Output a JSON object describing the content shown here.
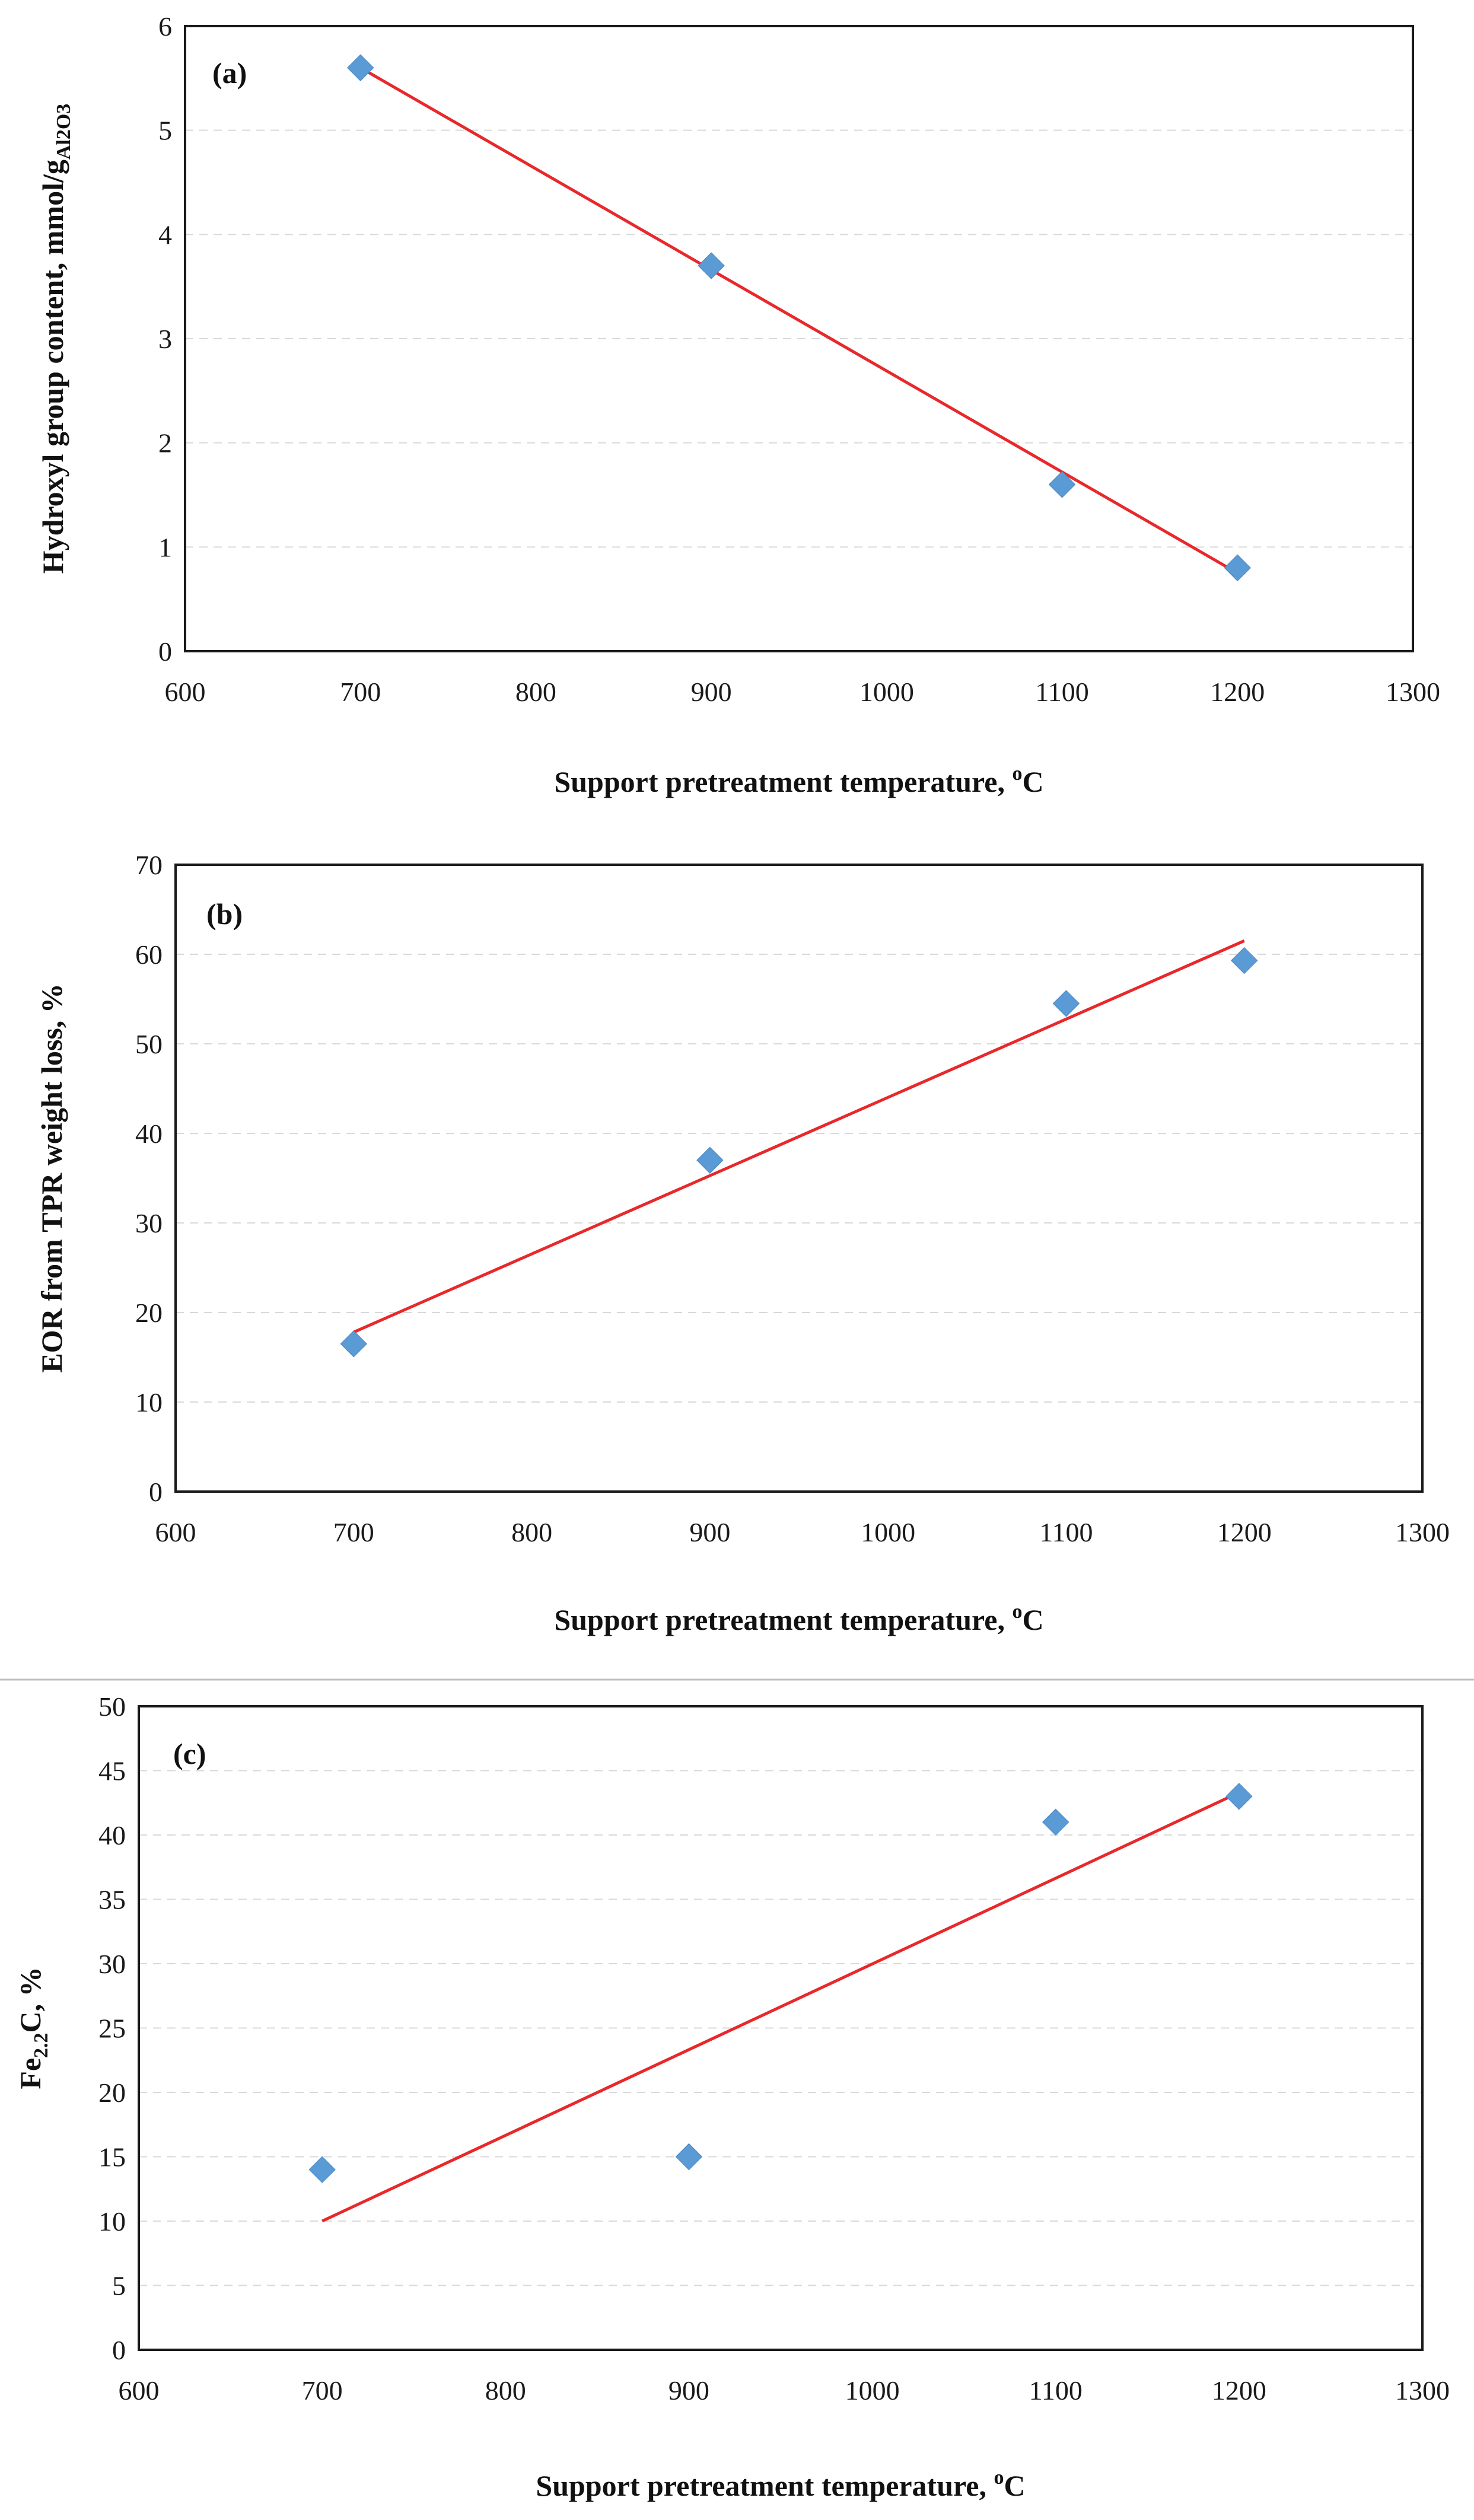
{
  "chart_data": [
    {
      "type": "scatter",
      "panel_label": "(a)",
      "x": [
        700,
        900,
        1100,
        1200
      ],
      "y": [
        5.6,
        3.7,
        1.6,
        0.8
      ],
      "trendline": {
        "x": [
          700,
          1200
        ],
        "y": [
          5.6,
          0.75
        ]
      },
      "xlim": [
        600,
        1300
      ],
      "ylim": [
        0,
        6
      ],
      "xticks": [
        "600",
        "700",
        "800",
        "900",
        "1000",
        "1100",
        "1200",
        "1300"
      ],
      "yticks": [
        "0",
        "1",
        "2",
        "3",
        "4",
        "5",
        "6"
      ],
      "xlabel": "Support pretreatment temperature, ",
      "xlabel_sup": "o",
      "xlabel_unit": "C",
      "ylabel": "Hydroxyl group content, mmol/g",
      "ylabel_sub": "Al2O3",
      "ylabel_tail": "",
      "marker_color": "#5b9bd5",
      "line_color": "#e8282b",
      "grid": true
    },
    {
      "type": "scatter",
      "panel_label": "(b)",
      "x": [
        700,
        900,
        1100,
        1200
      ],
      "y": [
        16.5,
        37,
        54.5,
        59.3
      ],
      "trendline": {
        "x": [
          700,
          1200
        ],
        "y": [
          17.8,
          61.5
        ]
      },
      "xlim": [
        600,
        1300
      ],
      "ylim": [
        0,
        70
      ],
      "xticks": [
        "600",
        "700",
        "800",
        "900",
        "1000",
        "1100",
        "1200",
        "1300"
      ],
      "yticks": [
        "0",
        "10",
        "20",
        "30",
        "40",
        "50",
        "60",
        "70"
      ],
      "xlabel": "Support pretreatment temperature, ",
      "xlabel_sup": "o",
      "xlabel_unit": "C",
      "ylabel": "EOR from TPR weight loss, %",
      "ylabel_sub": "",
      "ylabel_tail": "",
      "marker_color": "#5b9bd5",
      "line_color": "#e8282b",
      "grid": true
    },
    {
      "type": "scatter",
      "panel_label": "(c)",
      "x": [
        700,
        900,
        1100,
        1200
      ],
      "y": [
        14,
        15,
        41,
        43
      ],
      "trendline": {
        "x": [
          700,
          1200
        ],
        "y": [
          10,
          43.3
        ]
      },
      "xlim": [
        600,
        1300
      ],
      "ylim": [
        0,
        50
      ],
      "xticks": [
        "600",
        "700",
        "800",
        "900",
        "1000",
        "1100",
        "1200",
        "1300"
      ],
      "yticks": [
        "0",
        "5",
        "10",
        "15",
        "20",
        "25",
        "30",
        "35",
        "40",
        "45",
        "50"
      ],
      "xlabel": "Support pretreatment temperature, ",
      "xlabel_sup": "o",
      "xlabel_unit": "C",
      "ylabel": "Fe",
      "ylabel_sub": "2.2",
      "ylabel_tail": "C, %",
      "marker_color": "#5b9bd5",
      "line_color": "#e8282b",
      "grid": true
    }
  ]
}
